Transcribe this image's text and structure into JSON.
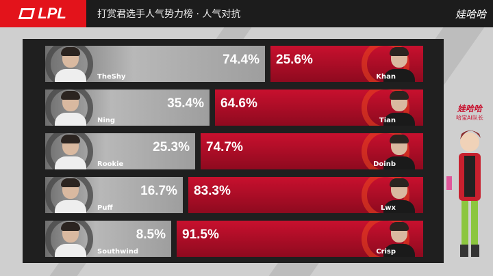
{
  "header": {
    "logo": "LPL",
    "title": "打赏君选手人气势力榜 · 人气对抗",
    "brand": "娃哈哈"
  },
  "mascot": {
    "brand": "娃哈哈",
    "subtitle": "哈宝AI队长"
  },
  "colors": {
    "left": "#a8a8a8",
    "right": "#b50d26",
    "accent": "#e3131b"
  },
  "matchups": [
    {
      "left_player": "TheShy",
      "left_pct": "74.4%",
      "left_value": 74.4,
      "right_player": "Khan",
      "right_pct": "25.6%",
      "right_value": 25.6
    },
    {
      "left_player": "Ning",
      "left_pct": "35.4%",
      "left_value": 35.4,
      "right_player": "Tian",
      "right_pct": "64.6%",
      "right_value": 64.6
    },
    {
      "left_player": "Rookie",
      "left_pct": "25.3%",
      "left_value": 25.3,
      "right_player": "Doinb",
      "right_pct": "74.7%",
      "right_value": 74.7
    },
    {
      "left_player": "Puff",
      "left_pct": "16.7%",
      "left_value": 16.7,
      "right_player": "Lwx",
      "right_pct": "83.3%",
      "right_value": 83.3
    },
    {
      "left_player": "Southwind",
      "left_pct": "8.5%",
      "left_value": 8.5,
      "right_player": "Crisp",
      "right_pct": "91.5%",
      "right_value": 91.5
    }
  ]
}
